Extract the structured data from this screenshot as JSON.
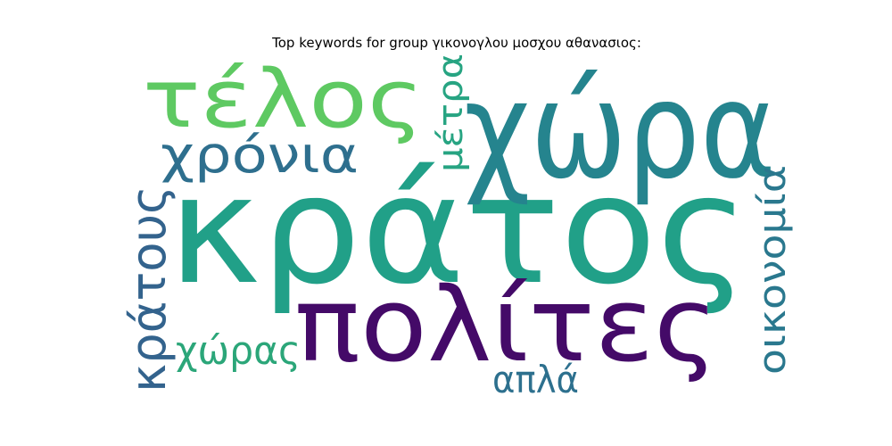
{
  "title": "Top keywords for group γικονογλου μοσχου αθανασιος:",
  "words": [
    {
      "text": "κράτος",
      "color": "#21a088",
      "vertical": false
    },
    {
      "text": "χώρα",
      "color": "#25848e",
      "vertical": false
    },
    {
      "text": "τέλος",
      "color": "#5ec962",
      "vertical": false
    },
    {
      "text": "πολίτες",
      "color": "#440a68",
      "vertical": false
    },
    {
      "text": "χρόνια",
      "color": "#2e6f8e",
      "vertical": false
    },
    {
      "text": "κράτους",
      "color": "#33638d",
      "vertical": true
    },
    {
      "text": "μέτρα",
      "color": "#27a482",
      "vertical": true
    },
    {
      "text": "οικονομία",
      "color": "#2a788e",
      "vertical": true
    },
    {
      "text": "χώρας",
      "color": "#2ba679",
      "vertical": false
    },
    {
      "text": "απλά",
      "color": "#2d708e",
      "vertical": false
    }
  ]
}
